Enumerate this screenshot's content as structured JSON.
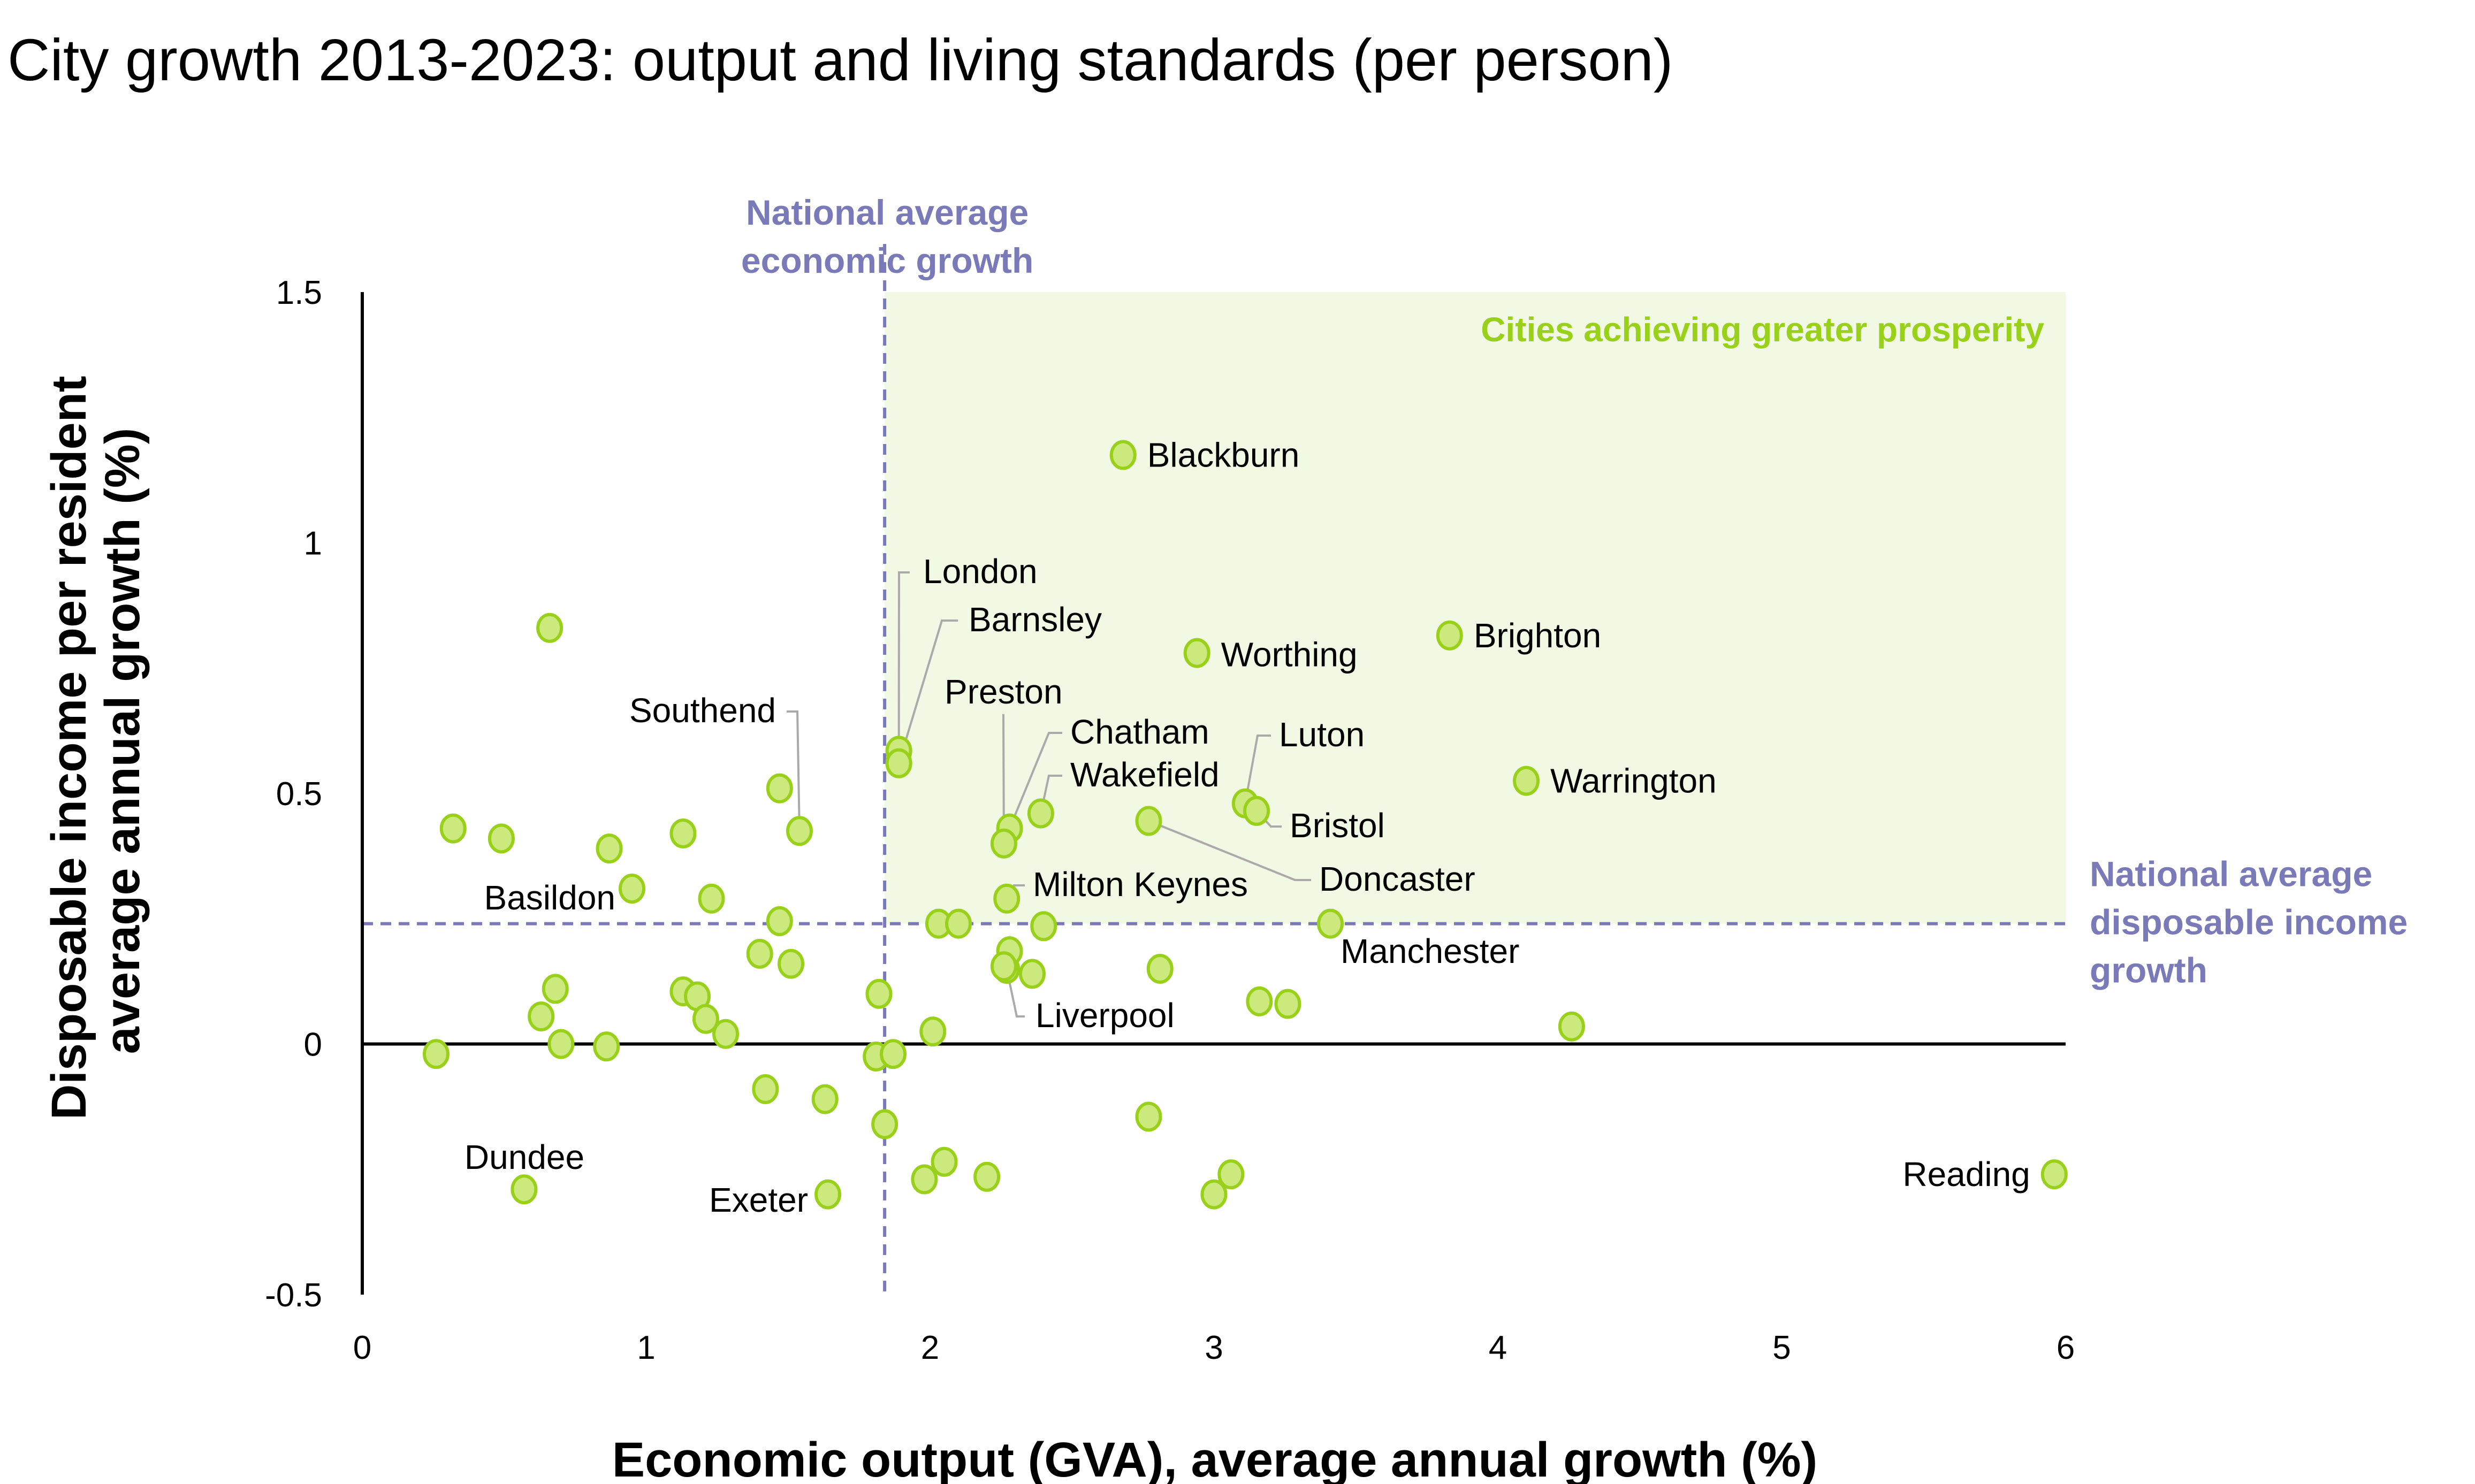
{
  "chart_data": {
    "type": "scatter",
    "title": "City growth 2013-2023: output and living standards (per person)",
    "xlabel": "Economic output (GVA), average annual growth (%)",
    "ylabel": [
      "Disposable income per resident",
      "average annual growth (%)"
    ],
    "xlim": [
      0,
      6
    ],
    "ylim": [
      -0.5,
      1.5
    ],
    "x_ticks": [
      "0",
      "1",
      "2",
      "3",
      "4",
      "5",
      "6"
    ],
    "y_ticks": [
      "1.5",
      "1",
      "0.5",
      "0",
      "-0.5"
    ],
    "x_tick_values": [
      0,
      1,
      2,
      3,
      4,
      5,
      6
    ],
    "y_tick_values": [
      1.5,
      1,
      0.5,
      0,
      -0.5
    ],
    "grid": false,
    "reference_lines": {
      "vertical": {
        "x": 1.84,
        "label": [
          "National average",
          "economic growth"
        ]
      },
      "horizontal": {
        "y": 0.24,
        "label": [
          "National average",
          "disposable income",
          "growth"
        ]
      }
    },
    "highlight_region": {
      "label": "Cities achieving greater prosperity",
      "x_from": 1.84,
      "x_to": 6,
      "y_from": 0.24,
      "y_to": 1.5
    },
    "colors": {
      "point_fill": "#cbe97d",
      "point_stroke": "#99d01a",
      "reference": "#7a7ab8",
      "region_fill": "#f1f9e4",
      "region_text": "#99d01a"
    },
    "points": [
      {
        "name": "Blackburn",
        "x": 2.68,
        "y": 1.175
      },
      {
        "name": "London",
        "x": 1.89,
        "y": 0.585
      },
      {
        "name": "Barnsley",
        "x": 1.89,
        "y": 0.56
      },
      {
        "name": "Worthing",
        "x": 2.94,
        "y": 0.78
      },
      {
        "name": "Brighton",
        "x": 3.83,
        "y": 0.815
      },
      {
        "name": "Warrington",
        "x": 4.1,
        "y": 0.525
      },
      {
        "name": "Luton",
        "x": 3.11,
        "y": 0.48
      },
      {
        "name": "Bristol",
        "x": 3.15,
        "y": 0.465
      },
      {
        "name": "Chatham",
        "x": 2.28,
        "y": 0.43
      },
      {
        "name": "Preston",
        "x": 2.26,
        "y": 0.4
      },
      {
        "name": "Wakefield",
        "x": 2.39,
        "y": 0.46
      },
      {
        "name": "Doncaster",
        "x": 2.77,
        "y": 0.445
      },
      {
        "name": "Milton Keynes",
        "x": 2.27,
        "y": 0.29
      },
      {
        "name": "Manchester",
        "x": 3.41,
        "y": 0.24
      },
      {
        "name": "Liverpool",
        "x": 2.27,
        "y": 0.15
      },
      {
        "name": "Reading",
        "x": 5.96,
        "y": -0.26
      },
      {
        "name": "Dundee",
        "x": 0.57,
        "y": -0.29
      },
      {
        "name": "Exeter",
        "x": 1.64,
        "y": -0.3
      },
      {
        "name": "Southend",
        "x": 1.54,
        "y": 0.425
      },
      {
        "name": "Basildon",
        "x": 0.95,
        "y": 0.31
      },
      {
        "name": "",
        "x": 0.66,
        "y": 0.83
      },
      {
        "name": "",
        "x": 0.32,
        "y": 0.43
      },
      {
        "name": "",
        "x": 0.49,
        "y": 0.41
      },
      {
        "name": "",
        "x": 0.87,
        "y": 0.39
      },
      {
        "name": "",
        "x": 1.13,
        "y": 0.42
      },
      {
        "name": "",
        "x": 1.47,
        "y": 0.51
      },
      {
        "name": "",
        "x": 1.23,
        "y": 0.29
      },
      {
        "name": "",
        "x": 1.47,
        "y": 0.245
      },
      {
        "name": "",
        "x": 1.4,
        "y": 0.18
      },
      {
        "name": "",
        "x": 1.51,
        "y": 0.16
      },
      {
        "name": "",
        "x": 0.68,
        "y": 0.11
      },
      {
        "name": "",
        "x": 1.13,
        "y": 0.105
      },
      {
        "name": "",
        "x": 1.18,
        "y": 0.095
      },
      {
        "name": "",
        "x": 1.21,
        "y": 0.05
      },
      {
        "name": "",
        "x": 1.28,
        "y": 0.02
      },
      {
        "name": "",
        "x": 0.63,
        "y": 0.055
      },
      {
        "name": "",
        "x": 0.7,
        "y": 0.0
      },
      {
        "name": "",
        "x": 0.86,
        "y": -0.005
      },
      {
        "name": "",
        "x": 0.26,
        "y": -0.02
      },
      {
        "name": "",
        "x": 1.82,
        "y": 0.1
      },
      {
        "name": "",
        "x": 1.81,
        "y": -0.025
      },
      {
        "name": "",
        "x": 1.87,
        "y": -0.02
      },
      {
        "name": "",
        "x": 2.01,
        "y": 0.025
      },
      {
        "name": "",
        "x": 1.42,
        "y": -0.09
      },
      {
        "name": "",
        "x": 1.63,
        "y": -0.11
      },
      {
        "name": "",
        "x": 1.84,
        "y": -0.16
      },
      {
        "name": "",
        "x": 1.98,
        "y": -0.27
      },
      {
        "name": "",
        "x": 2.05,
        "y": -0.235
      },
      {
        "name": "",
        "x": 2.2,
        "y": -0.265
      },
      {
        "name": "",
        "x": 2.03,
        "y": 0.24
      },
      {
        "name": "",
        "x": 2.1,
        "y": 0.24
      },
      {
        "name": "",
        "x": 2.4,
        "y": 0.235
      },
      {
        "name": "",
        "x": 2.28,
        "y": 0.185
      },
      {
        "name": "",
        "x": 2.26,
        "y": 0.155
      },
      {
        "name": "",
        "x": 2.36,
        "y": 0.14
      },
      {
        "name": "",
        "x": 2.81,
        "y": 0.15
      },
      {
        "name": "",
        "x": 2.77,
        "y": -0.145
      },
      {
        "name": "",
        "x": 3.06,
        "y": -0.26
      },
      {
        "name": "",
        "x": 3.0,
        "y": -0.3
      },
      {
        "name": "",
        "x": 3.16,
        "y": 0.085
      },
      {
        "name": "",
        "x": 3.26,
        "y": 0.08
      },
      {
        "name": "",
        "x": 4.26,
        "y": 0.035
      }
    ]
  }
}
